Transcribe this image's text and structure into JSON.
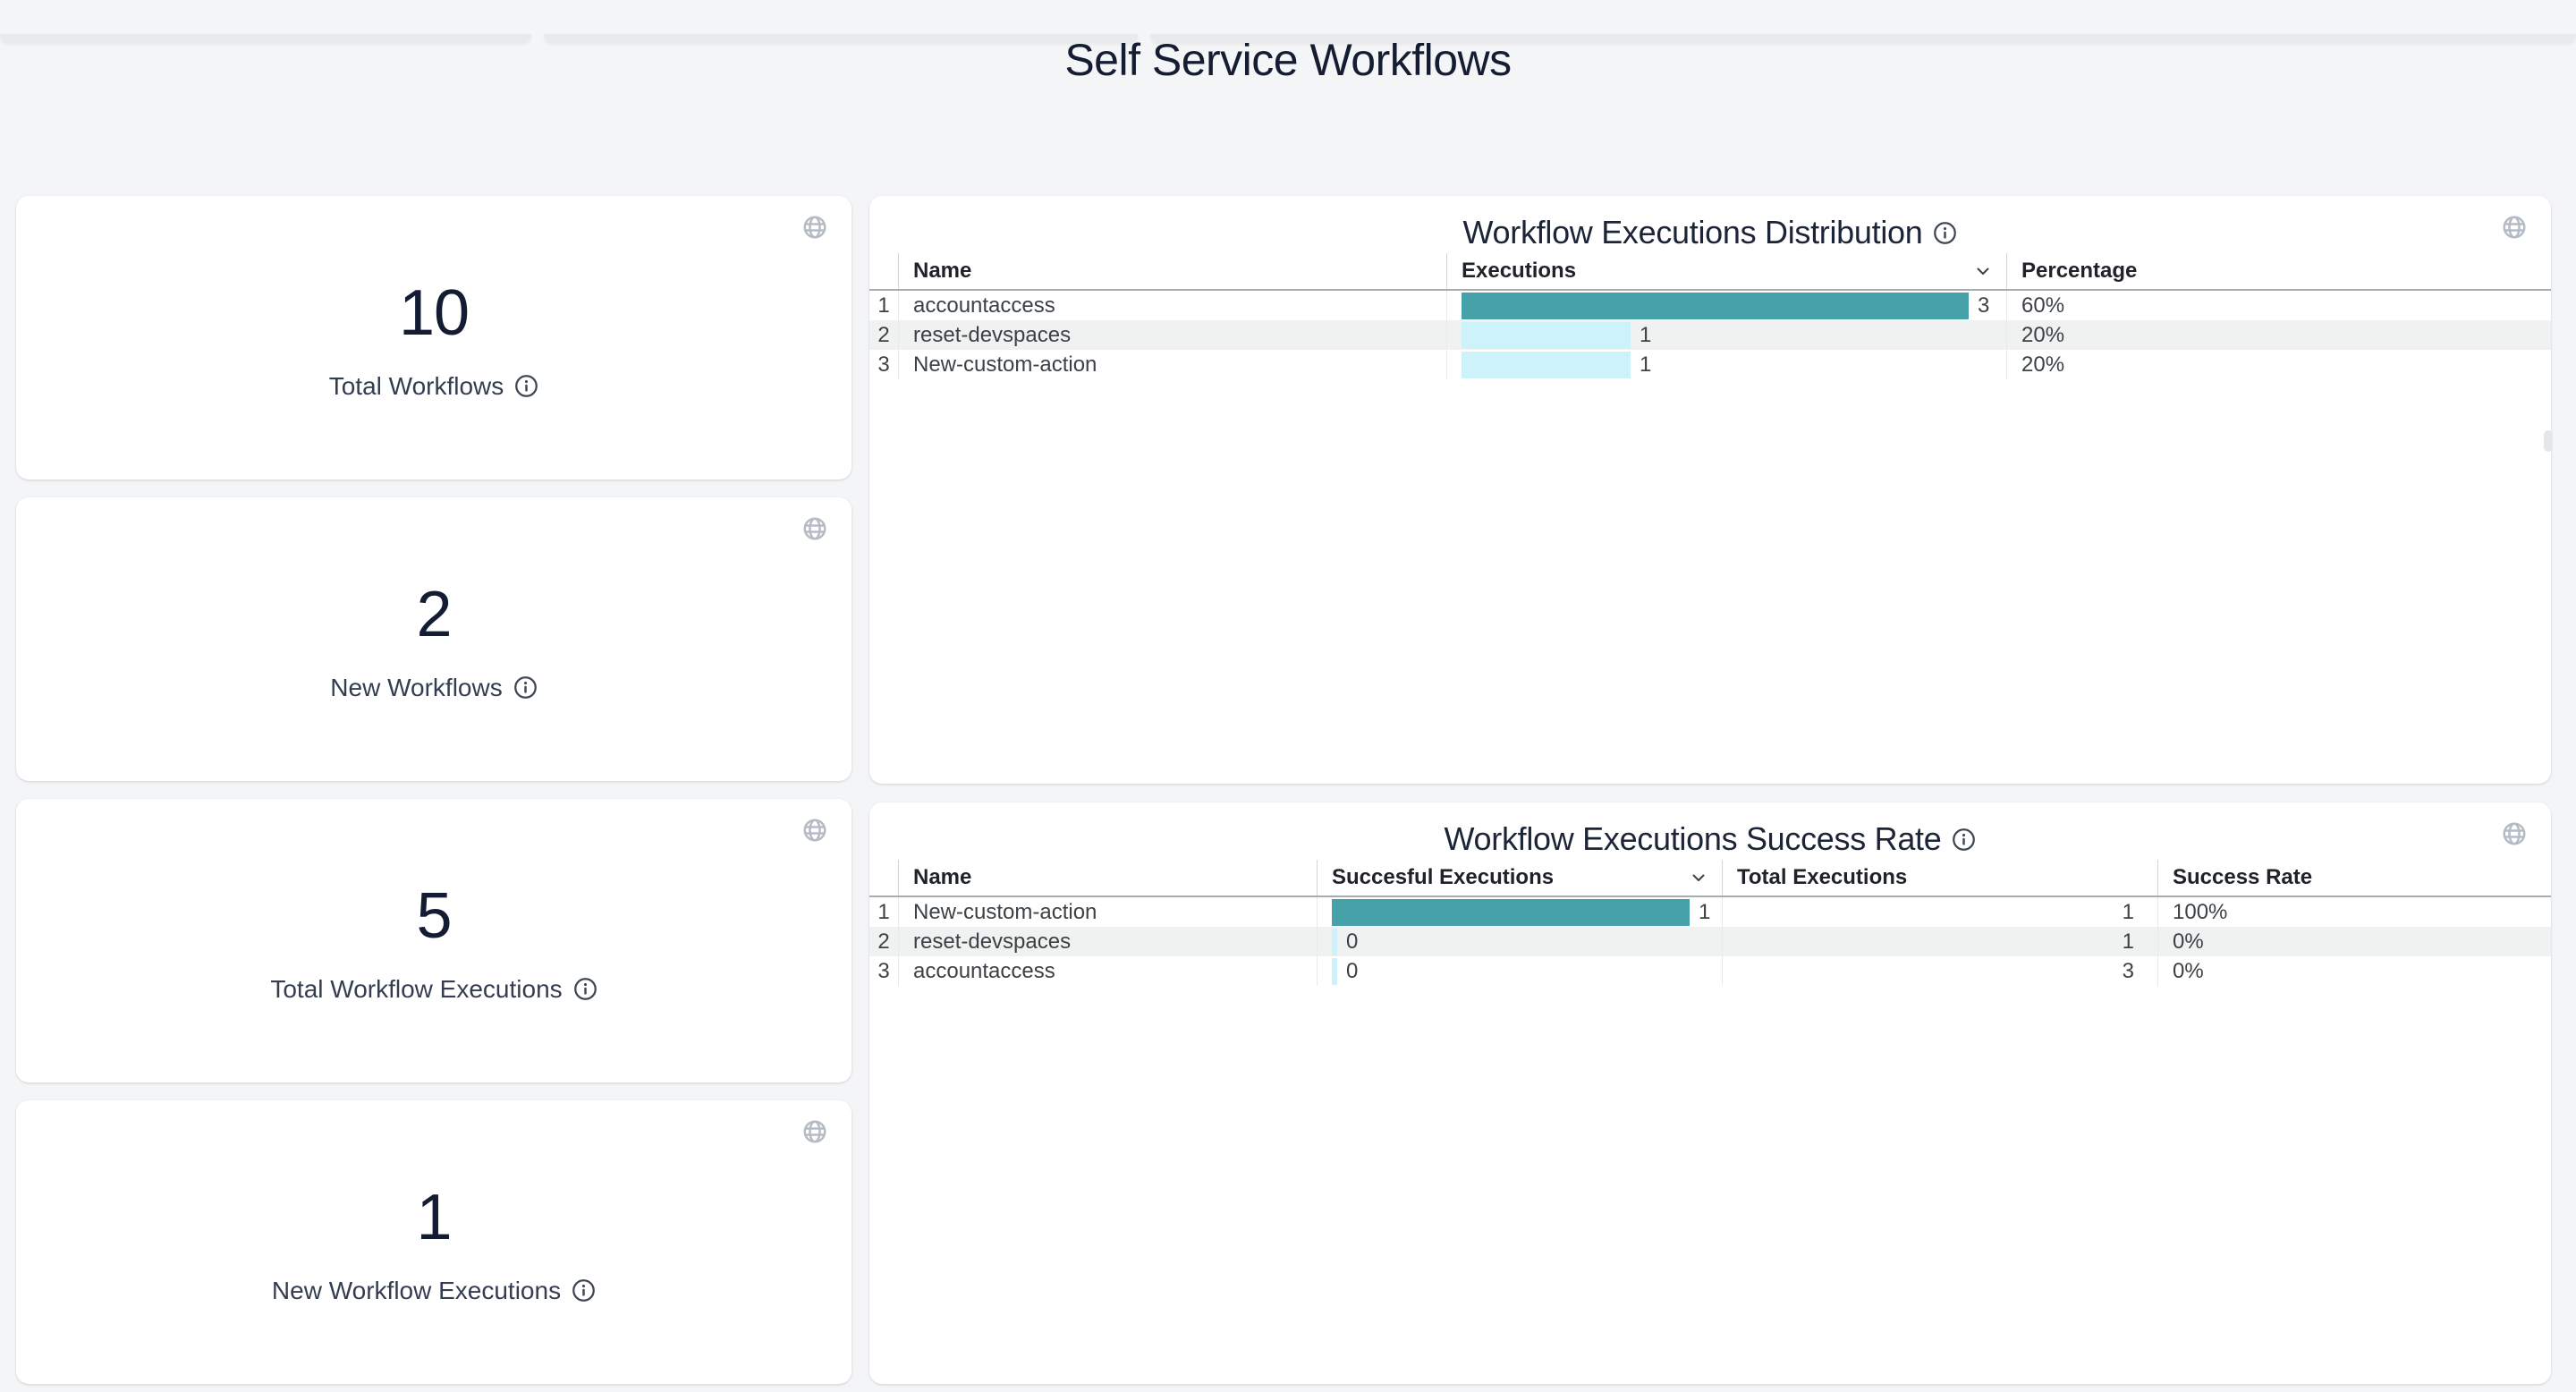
{
  "page": {
    "title": "Self Service Workflows"
  },
  "stats": [
    {
      "value": 10,
      "label": "Total Workflows"
    },
    {
      "value": 2,
      "label": "New Workflows"
    },
    {
      "value": 5,
      "label": "Total Workflow Executions"
    },
    {
      "value": 1,
      "label": "New Workflow Executions"
    }
  ],
  "distribution": {
    "title": "Workflow Executions Distribution",
    "columns": {
      "name": "Name",
      "executions": "Executions",
      "percentage": "Percentage"
    },
    "sorted_by": "Executions",
    "max_value": 3,
    "rows": [
      {
        "num": 1,
        "name": "accountaccess",
        "executions": 3,
        "percentage": "60%"
      },
      {
        "num": 2,
        "name": "reset-devspaces",
        "executions": 1,
        "percentage": "20%"
      },
      {
        "num": 3,
        "name": "New-custom-action",
        "executions": 1,
        "percentage": "20%"
      }
    ]
  },
  "success": {
    "title": "Workflow Executions Success Rate",
    "columns": {
      "name": "Name",
      "successful": "Succesful Executions",
      "total": "Total Executions",
      "rate": "Success Rate"
    },
    "sorted_by": "Succesful Executions",
    "max_value": 1,
    "rows": [
      {
        "num": 1,
        "name": "New-custom-action",
        "successful": 1,
        "total": 1,
        "rate": "100%"
      },
      {
        "num": 2,
        "name": "reset-devspaces",
        "successful": 0,
        "total": 1,
        "rate": "0%"
      },
      {
        "num": 3,
        "name": "accountaccess",
        "successful": 0,
        "total": 3,
        "rate": "0%"
      }
    ]
  },
  "icons": {
    "panel_action": "globe-icon",
    "label_hint": "info-icon",
    "sort_indicator": "chevron-down-icon"
  },
  "colors": {
    "page_bg": "#f4f5f7",
    "card_bg": "#ffffff",
    "heading": "#1a2236",
    "bar_teal": "#47a1a8",
    "bar_cyan": "#cdf2f9",
    "row_stripe": "#f0f1f1",
    "header_rule": "#a7acb0"
  }
}
